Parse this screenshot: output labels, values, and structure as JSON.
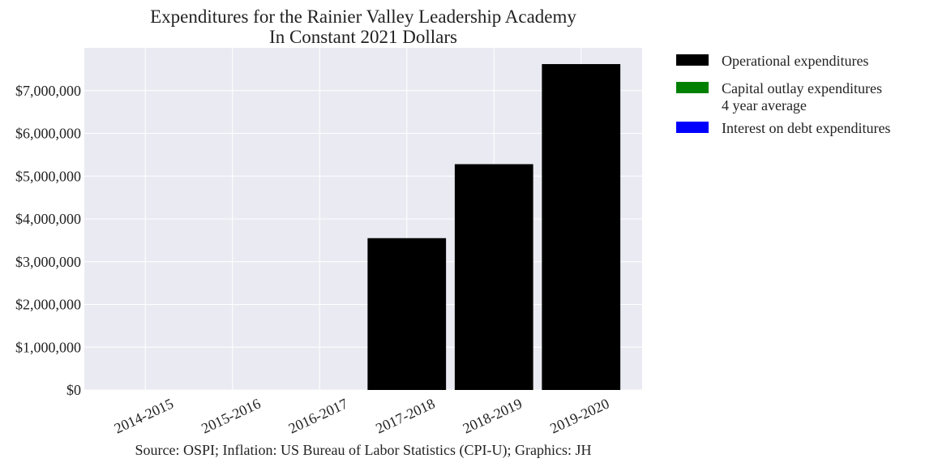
{
  "chart_data": {
    "type": "bar",
    "title": "Expenditures for the Rainier Valley Leadership Academy",
    "subtitle": "In Constant 2021 Dollars",
    "categories": [
      "2014-2015",
      "2015-2016",
      "2016-2017",
      "2017-2018",
      "2018-2019",
      "2019-2020"
    ],
    "series": [
      {
        "name": "Operational expenditures",
        "color": "#000000",
        "values": [
          0,
          0,
          0,
          3550000,
          5280000,
          7620000
        ]
      },
      {
        "name": "Capital outlay expenditures\n4 year average",
        "color": "#008000",
        "values": [
          0,
          0,
          0,
          0,
          0,
          0
        ]
      },
      {
        "name": "Interest on debt expenditures",
        "color": "#0000ff",
        "values": [
          0,
          0,
          0,
          0,
          0,
          0
        ]
      }
    ],
    "stacked": true,
    "ylim": [
      0,
      8000000
    ],
    "yticks": [
      0,
      1000000,
      2000000,
      3000000,
      4000000,
      5000000,
      6000000,
      7000000
    ],
    "ytick_labels": [
      "$0",
      "$1,000,000",
      "$2,000,000",
      "$3,000,000",
      "$4,000,000",
      "$5,000,000",
      "$6,000,000",
      "$7,000,000"
    ],
    "xlabel": "",
    "ylabel": "",
    "grid": true,
    "legend_position": "outside-right",
    "background_color": "#eaeaf2",
    "source": "Source: OSPI; Inflation: US Bureau of Labor Statistics (CPI-U); Graphics: JH"
  }
}
